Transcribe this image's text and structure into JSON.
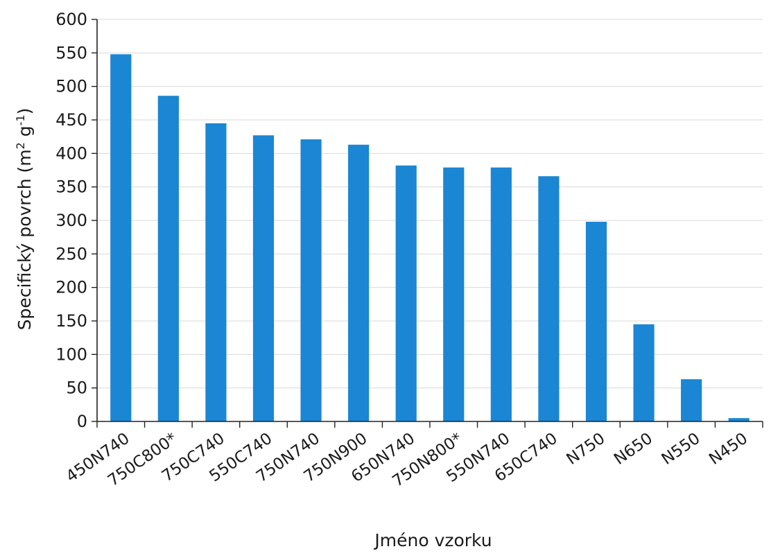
{
  "chart_data": {
    "type": "bar",
    "categories": [
      "450N740",
      "750C800*",
      "750C740",
      "550C740",
      "750N740",
      "750N900",
      "650N740",
      "750N800*",
      "550N740",
      "650C740",
      "N750",
      "N650",
      "N550",
      "N450"
    ],
    "values": [
      548,
      486,
      445,
      427,
      421,
      413,
      382,
      379,
      379,
      366,
      298,
      145,
      63,
      5
    ],
    "xlabel": "Jméno vzorku",
    "ylabel_main": "Specifický povrch (m",
    "ylabel_sup1": "2",
    "ylabel_mid": " g",
    "ylabel_sup2": "-1",
    "ylabel_end": ")",
    "ylim": [
      0,
      600
    ],
    "ytick_step": 50,
    "grid": true,
    "bar_color": "#1b86d4"
  }
}
